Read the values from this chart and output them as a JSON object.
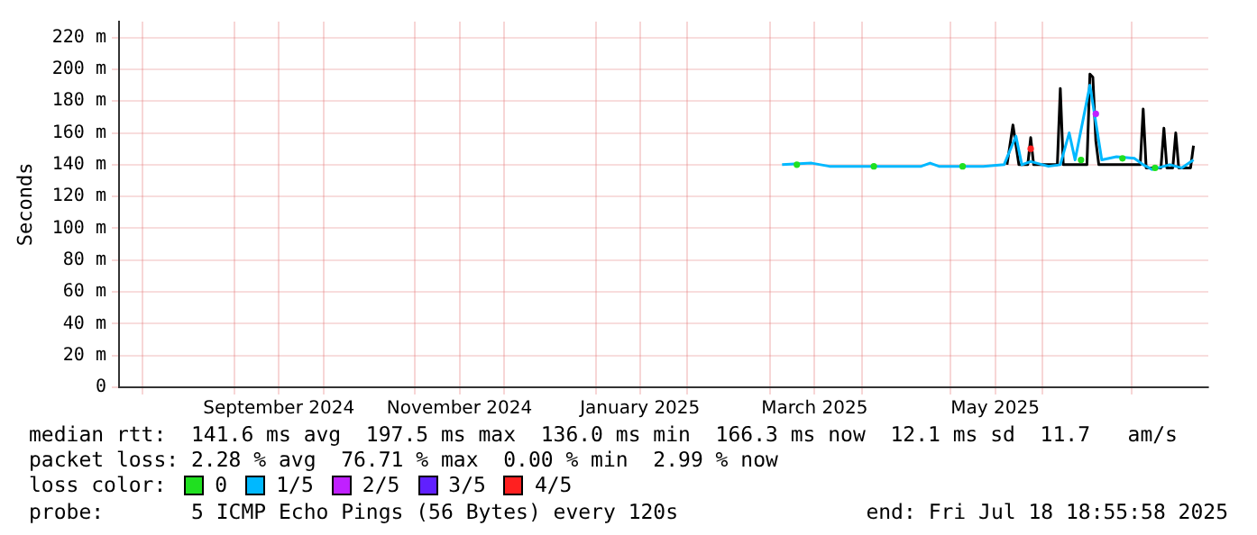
{
  "chart_data": {
    "type": "line",
    "ylabel": "Seconds",
    "legend_title": "loss color:",
    "legend": "bottom",
    "grid": true,
    "line_style": "solid",
    "xlim": [
      "2024-07-24",
      "2025-07-27"
    ],
    "xticks": [
      {
        "value": "2024-08-01",
        "label": null
      },
      {
        "value": "2024-09-01",
        "label": null
      },
      {
        "value": "2024-09-16",
        "label": "September 2024"
      },
      {
        "value": "2024-10-01",
        "label": null
      },
      {
        "value": "2024-11-01",
        "label": null
      },
      {
        "value": "2024-11-16",
        "label": "November 2024"
      },
      {
        "value": "2024-12-01",
        "label": null
      },
      {
        "value": "2025-01-01",
        "label": null
      },
      {
        "value": "2025-01-16",
        "label": "January 2025"
      },
      {
        "value": "2025-02-01",
        "label": null
      },
      {
        "value": "2025-03-01",
        "label": null
      },
      {
        "value": "2025-03-16",
        "label": "March 2025"
      },
      {
        "value": "2025-04-01",
        "label": null
      },
      {
        "value": "2025-05-01",
        "label": null
      },
      {
        "value": "2025-05-16",
        "label": "May 2025"
      },
      {
        "value": "2025-06-01",
        "label": null
      },
      {
        "value": "2025-07-01",
        "label": null
      }
    ],
    "ylim": [
      0,
      230
    ],
    "yticks": [
      0,
      {
        "value": 20,
        "label": "20 m"
      },
      {
        "value": 40,
        "label": "40 m"
      },
      {
        "value": 60,
        "label": "60 m"
      },
      {
        "value": 80,
        "label": "80 m"
      },
      {
        "value": 100,
        "label": "100 m"
      },
      {
        "value": 120,
        "label": "120 m"
      },
      {
        "value": 140,
        "label": "140 m"
      },
      {
        "value": 160,
        "label": "160 m"
      },
      {
        "value": 180,
        "label": "180 m"
      },
      {
        "value": 200,
        "label": "200 m"
      },
      {
        "value": 220,
        "label": "220 m"
      }
    ],
    "series": [
      {
        "type": "line",
        "color": "#000000",
        "x": [
          "2025-05-20",
          "2025-05-22",
          "2025-05-24",
          "2025-05-27",
          "2025-05-28",
          "2025-05-29",
          "2025-06-06",
          "2025-06-07",
          "2025-06-08",
          "2025-06-16",
          "2025-06-17",
          "2025-06-18",
          "2025-06-19",
          "2025-06-20",
          "2025-07-04",
          "2025-07-05",
          "2025-07-06",
          "2025-07-11",
          "2025-07-12",
          "2025-07-13",
          "2025-07-15",
          "2025-07-16",
          "2025-07-17",
          "2025-07-21",
          "2025-07-22"
        ],
        "values": [
          140,
          165,
          140,
          140,
          157,
          140,
          140,
          188,
          140,
          140,
          197,
          195,
          155,
          140,
          140,
          175,
          138,
          138,
          163,
          138,
          138,
          160,
          138,
          138,
          152
        ]
      },
      {
        "name": "0",
        "type": "scatter",
        "marker": "circle",
        "color": "#20e020",
        "x": [
          "2025-03-10",
          "2025-04-05",
          "2025-05-05",
          "2025-06-14",
          "2025-06-28",
          "2025-07-09"
        ],
        "values": [
          140,
          139,
          139,
          143,
          144,
          138
        ]
      },
      {
        "name": "1/5",
        "type": "line",
        "color": "#00b8ff",
        "x": [
          "2025-03-05",
          "2025-03-15",
          "2025-03-21",
          "2025-04-02",
          "2025-04-21",
          "2025-04-24",
          "2025-04-27",
          "2025-05-12",
          "2025-05-19",
          "2025-05-23",
          "2025-05-25",
          "2025-05-28",
          "2025-06-03",
          "2025-06-07",
          "2025-06-10",
          "2025-06-12",
          "2025-06-17",
          "2025-06-21",
          "2025-06-26",
          "2025-07-02",
          "2025-07-05",
          "2025-07-08",
          "2025-07-14",
          "2025-07-18",
          "2025-07-22"
        ],
        "values": [
          140,
          141,
          139,
          139,
          139,
          141,
          139,
          139,
          140,
          158,
          140,
          142,
          139,
          140,
          160,
          143,
          190,
          143,
          145,
          144,
          140,
          137,
          140,
          138,
          143
        ]
      },
      {
        "name": "2/5",
        "type": "scatter",
        "marker": "circle",
        "color": "#c020ff",
        "x": [
          "2025-06-19"
        ],
        "values": [
          172
        ]
      },
      {
        "name": "3/5",
        "type": "scatter",
        "marker": "circle",
        "color": "#6020ff"
      },
      {
        "name": "4/5",
        "type": "scatter",
        "marker": "circle",
        "color": "#ff2020",
        "x": [
          "2025-05-28"
        ],
        "values": [
          150
        ]
      }
    ],
    "annotations": [
      "median rtt:  141.6 ms avg  197.5 ms max  136.0 ms min  166.3 ms now  12.1 ms sd  11.7   am/s",
      "packet loss: 2.28 % avg  76.71 % max  0.00 % min  2.99 % now",
      "probe:       5 ICMP Echo Pings (56 Bytes) every 120s",
      "end: Fri Jul 18 18:55:58 2025"
    ]
  }
}
